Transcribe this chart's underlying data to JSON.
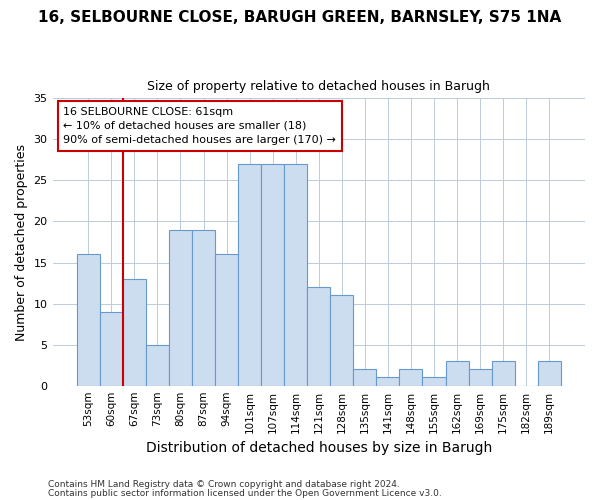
{
  "title1": "16, SELBOURNE CLOSE, BARUGH GREEN, BARNSLEY, S75 1NA",
  "title2": "Size of property relative to detached houses in Barugh",
  "xlabel": "Distribution of detached houses by size in Barugh",
  "ylabel": "Number of detached properties",
  "categories": [
    "53sqm",
    "60sqm",
    "67sqm",
    "73sqm",
    "80sqm",
    "87sqm",
    "94sqm",
    "101sqm",
    "107sqm",
    "114sqm",
    "121sqm",
    "128sqm",
    "135sqm",
    "141sqm",
    "148sqm",
    "155sqm",
    "162sqm",
    "169sqm",
    "175sqm",
    "182sqm",
    "189sqm"
  ],
  "values": [
    16,
    9,
    13,
    5,
    19,
    19,
    16,
    27,
    27,
    27,
    12,
    11,
    2,
    1,
    2,
    1,
    3,
    2,
    3,
    0,
    3
  ],
  "bar_color": "#ccddf0",
  "bar_edge_color": "#6699cc",
  "bar_edge_width": 0.8,
  "grid_color": "#bbccdd",
  "bg_color": "#ffffff",
  "annotation_text_line1": "16 SELBOURNE CLOSE: 61sqm",
  "annotation_text_line2": "← 10% of detached houses are smaller (18)",
  "annotation_text_line3": "90% of semi-detached houses are larger (170) →",
  "red_line_color": "#cc0000",
  "annotation_box_edge_color": "#cc0000",
  "footer_line1": "Contains HM Land Registry data © Crown copyright and database right 2024.",
  "footer_line2": "Contains public sector information licensed under the Open Government Licence v3.0.",
  "ylim": [
    0,
    35
  ],
  "yticks": [
    0,
    5,
    10,
    15,
    20,
    25,
    30,
    35
  ],
  "title1_fontsize": 11,
  "title2_fontsize": 9,
  "xlabel_fontsize": 10,
  "ylabel_fontsize": 9,
  "xtick_fontsize": 7.5,
  "ytick_fontsize": 8,
  "annotation_fontsize": 8,
  "footer_fontsize": 6.5
}
